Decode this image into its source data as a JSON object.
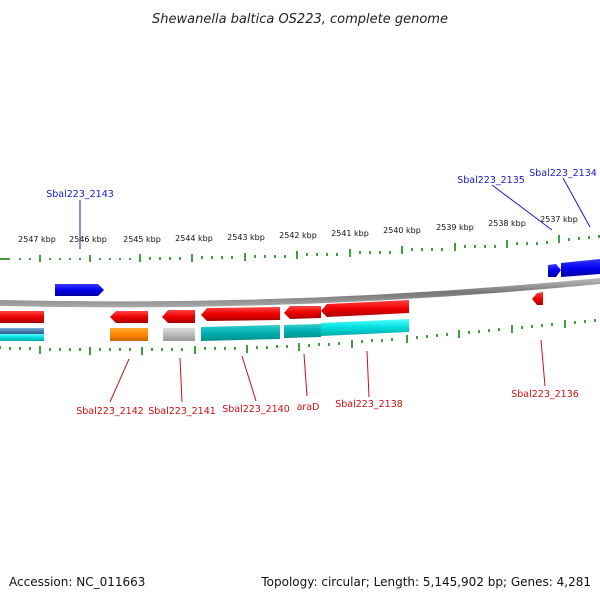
{
  "title": "Shewanella baltica OS223, complete genome",
  "scale_labels": [
    "2547 kbp",
    "2546 kbp",
    "2545 kbp",
    "2544 kbp",
    "2543 kbp",
    "2542 kbp",
    "2541 kbp",
    "2540 kbp",
    "2539 kbp",
    "2538 kbp",
    "2537 kbp"
  ],
  "top_gene_labels": {
    "g2143": "Sbal223_2143",
    "g2135": "Sbal223_2135",
    "g2134": "Sbal223_2134"
  },
  "bottom_gene_labels": {
    "g2142": "Sbal223_2142",
    "g2141": "Sbal223_2141",
    "g2140": "Sbal223_2140",
    "araD": "araD",
    "g2138": "Sbal223_2138",
    "g2136": "Sbal223_2136"
  },
  "footer": {
    "accession": "Accession: NC_011663",
    "summary": "Topology: circular; Length: 5,145,902 bp; Genes: 4,281"
  },
  "colors": {
    "plus_strand": "#0000ee",
    "minus_strand": "#ee0000",
    "tick": "#008000",
    "backbone": "#888888",
    "cyan": "#00cccc",
    "orange": "#ff8800",
    "gray": "#aaaaaa",
    "steel": "#4a7fb0"
  }
}
